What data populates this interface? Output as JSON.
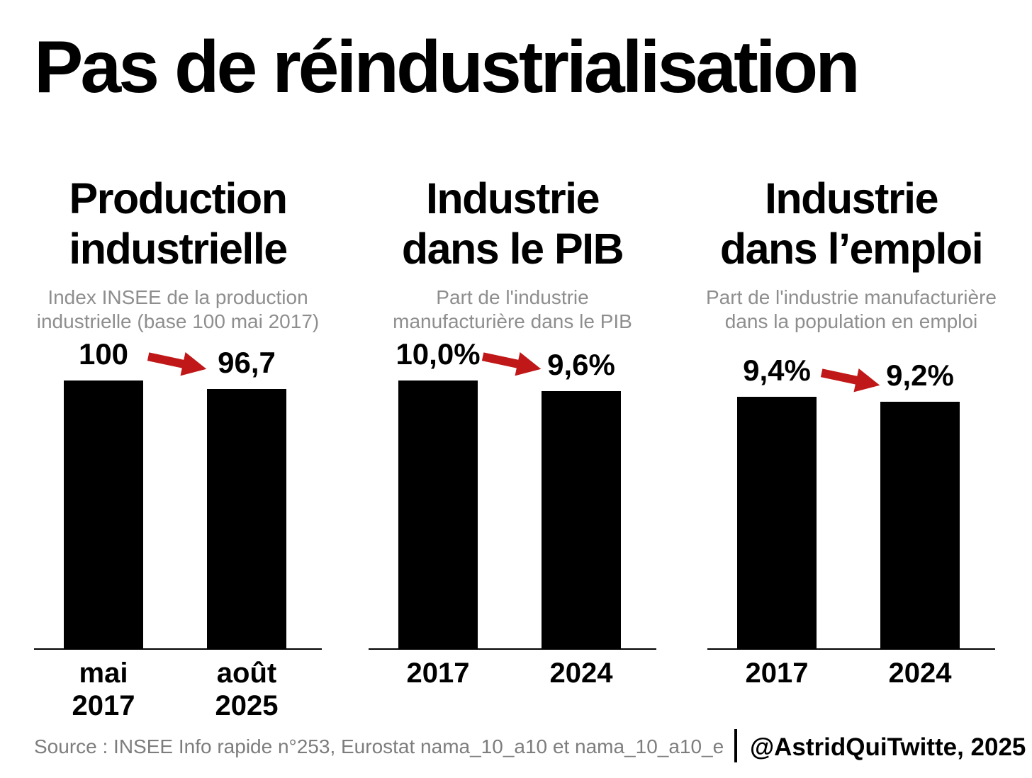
{
  "header": {
    "title": "Pas de réindustrialisation"
  },
  "colors": {
    "bar_black": "#000000",
    "arrow_red": "#c01818",
    "subtitle_gray": "#8e8e8e",
    "source_gray": "#7d7d7d",
    "background": "#ffffff"
  },
  "chart_data": [
    {
      "type": "bar",
      "title": "Production industrielle",
      "title_lines": [
        "Production",
        "industrielle"
      ],
      "subtitle": "Index INSEE de la production industrielle (base 100 mai 2017)",
      "subtitle_lines": [
        "Index INSEE de la production",
        "industrielle (base 100 mai 2017)"
      ],
      "unit": "index",
      "categories": [
        "mai 2017",
        "août 2025"
      ],
      "category_lines": [
        [
          "mai",
          "2017"
        ],
        [
          "août",
          "2025"
        ]
      ],
      "values": [
        100,
        96.7
      ],
      "value_labels": [
        "100",
        "96,7"
      ],
      "ylim": [
        0,
        100
      ],
      "bar_color": "#000000",
      "annotation": "declining red arrow between bars",
      "legend": "none",
      "grid": "off"
    },
    {
      "type": "bar",
      "title": "Industrie dans le PIB",
      "title_lines": [
        "Industrie",
        "dans le PIB"
      ],
      "subtitle": "Part de l'industrie manufacturière dans le PIB",
      "subtitle_lines": [
        "Part de l'industrie",
        "manufacturière dans le PIB"
      ],
      "unit": "%",
      "categories": [
        "2017",
        "2024"
      ],
      "category_lines": [
        [
          "2017"
        ],
        [
          "2024"
        ]
      ],
      "values": [
        10.0,
        9.6
      ],
      "value_labels": [
        "10,0%",
        "9,6%"
      ],
      "ylim": [
        0,
        10
      ],
      "bar_color": "#000000",
      "annotation": "declining red arrow between bars",
      "legend": "none",
      "grid": "off"
    },
    {
      "type": "bar",
      "title": "Industrie dans l’emploi",
      "title_lines": [
        "Industrie",
        "dans l’emploi"
      ],
      "subtitle": "Part de l'industrie manufacturière dans la population en emploi",
      "subtitle_lines": [
        "Part de l'industrie manufacturière",
        "dans la population en emploi"
      ],
      "unit": "%",
      "categories": [
        "2017",
        "2024"
      ],
      "category_lines": [
        [
          "2017"
        ],
        [
          "2024"
        ]
      ],
      "values": [
        9.4,
        9.2
      ],
      "value_labels": [
        "9,4%",
        "9,2%"
      ],
      "ylim": [
        0,
        10
      ],
      "bar_color": "#000000",
      "annotation": "declining red arrow between bars",
      "legend": "none",
      "grid": "off"
    }
  ],
  "footer": {
    "source": "Source : INSEE Info rapide n°253, Eurostat nama_10_a10 et nama_10_a10_e",
    "credit": "@AstridQuiTwitte, 2025"
  }
}
